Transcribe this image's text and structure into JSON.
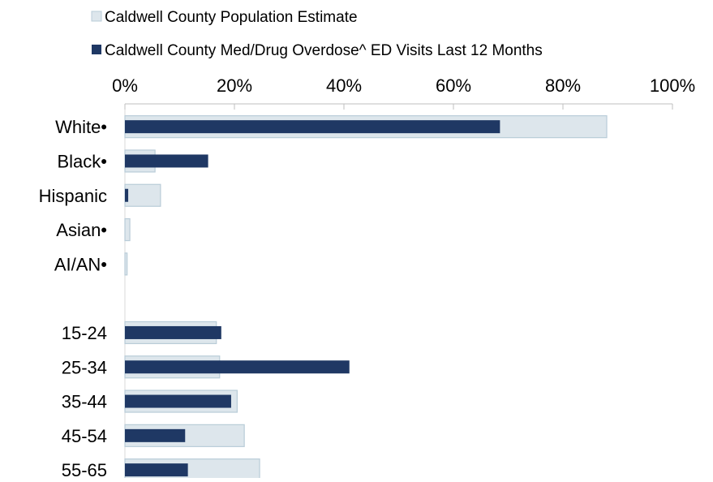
{
  "chart_data": {
    "type": "bar",
    "orientation": "horizontal",
    "legend_position": "top",
    "grid": false,
    "categories": [
      "White•",
      "Black•",
      "Hispanic",
      "Asian•",
      "AI/AN•",
      "",
      "15-24",
      "25-34",
      "35-44",
      "45-54",
      "55-65"
    ],
    "x_ticks": [
      "0%",
      "20%",
      "40%",
      "60%",
      "80%",
      "100%"
    ],
    "xlim": [
      0,
      100
    ],
    "series": [
      {
        "name": "Caldwell County Population Estimate",
        "color": "#dde6ec",
        "stroke": "#b9ccd8",
        "values": [
          88,
          5.5,
          6.5,
          0.9,
          0.4,
          null,
          16.7,
          17.3,
          20.5,
          21.8,
          24.6
        ]
      },
      {
        "name": "Caldwell County Med/Drug Overdose^ ED Visits Last 12 Months",
        "color": "#1f3864",
        "values": [
          68.5,
          15.2,
          0.6,
          0,
          0,
          null,
          17.6,
          41,
          19.4,
          11,
          11.5
        ]
      }
    ]
  }
}
